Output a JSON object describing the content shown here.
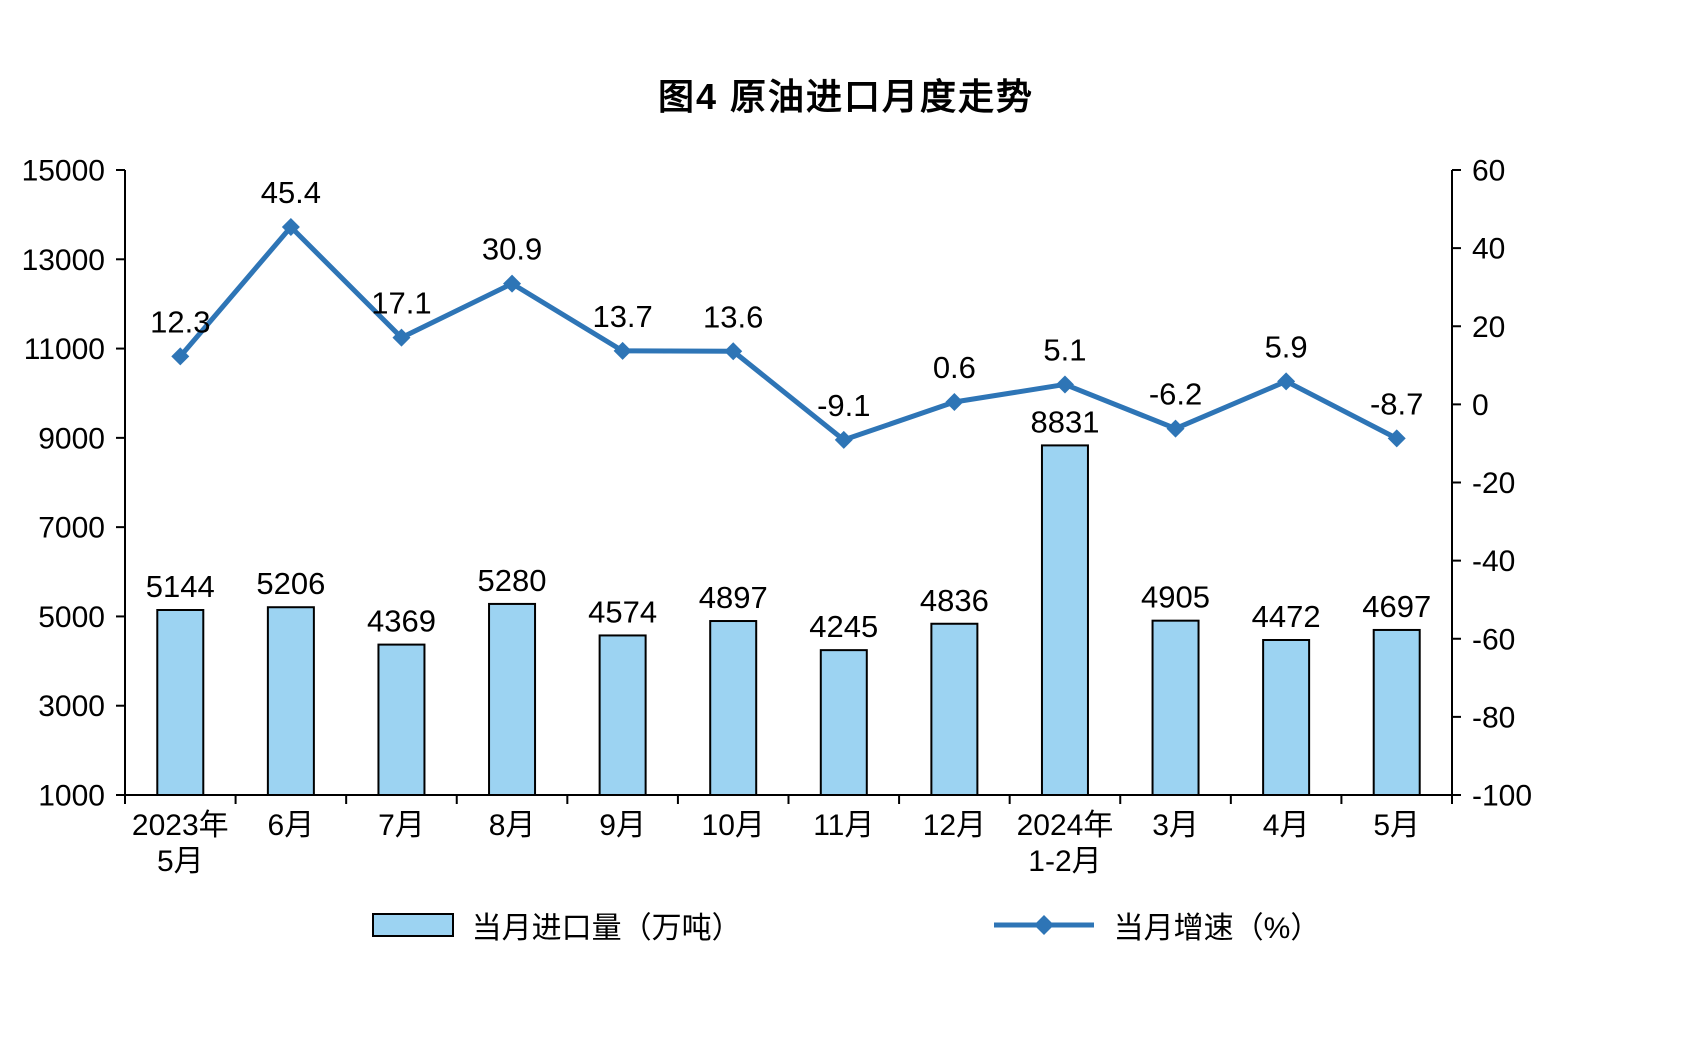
{
  "chart_data": {
    "type": "combo",
    "title": "图4 原油进口月度走势",
    "categories": [
      [
        "2023年",
        "5月"
      ],
      [
        "6月"
      ],
      [
        "7月"
      ],
      [
        "8月"
      ],
      [
        "9月"
      ],
      [
        "10月"
      ],
      [
        "11月"
      ],
      [
        "12月"
      ],
      [
        "2024年",
        "1-2月"
      ],
      [
        "3月"
      ],
      [
        "4月"
      ],
      [
        "5月"
      ]
    ],
    "series": [
      {
        "name": "当月进口量（万吨）",
        "type": "bar",
        "axis": "left",
        "color": "#9CD3F2",
        "border_color": "#000000",
        "values": [
          5144,
          5206,
          4369,
          5280,
          4574,
          4897,
          4245,
          4836,
          8831,
          4905,
          4472,
          4697
        ]
      },
      {
        "name": "当月增速（%）",
        "type": "line",
        "axis": "right",
        "color": "#2E75B6",
        "marker": "diamond",
        "values": [
          12.3,
          45.4,
          17.1,
          30.9,
          13.7,
          13.6,
          -9.1,
          0.6,
          5.1,
          -6.2,
          5.9,
          -8.7
        ]
      }
    ],
    "left_axis": {
      "min": 1000,
      "max": 15000,
      "ticks": [
        15000,
        13000,
        11000,
        9000,
        7000,
        5000,
        3000,
        1000
      ]
    },
    "right_axis": {
      "min": -100,
      "max": 60,
      "ticks": [
        60,
        40,
        20,
        0,
        -20,
        -40,
        -60,
        -80,
        -100
      ]
    },
    "grid": false,
    "legend_position": "bottom",
    "text_color": "#000000",
    "axis_color": "#000000"
  }
}
